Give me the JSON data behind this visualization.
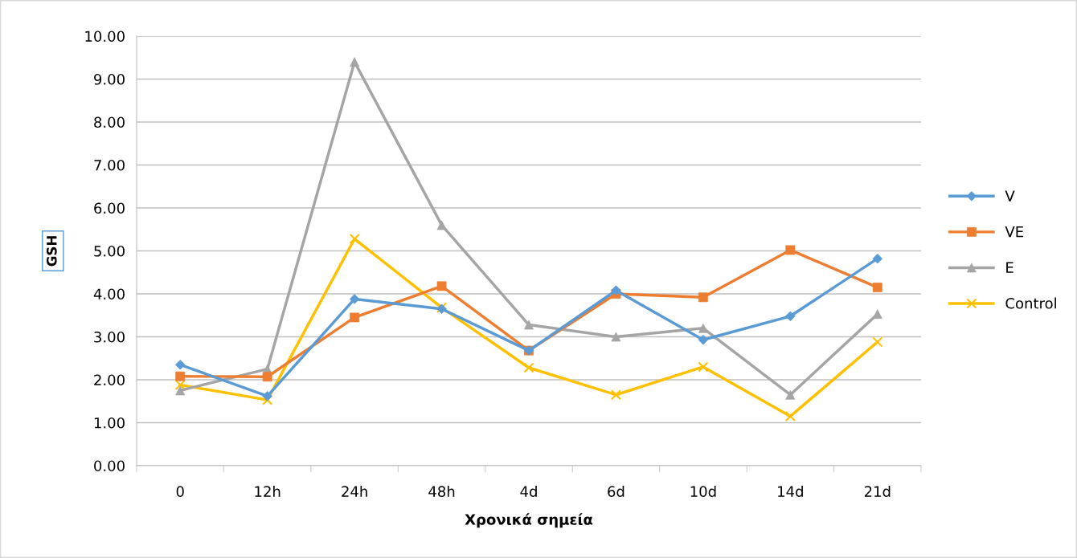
{
  "chart_data": {
    "type": "line",
    "xlabel": "Χρονικά σημεία",
    "ylabel": "GSH",
    "categories": [
      "0",
      "12h",
      "24h",
      "48h",
      "4d",
      "6d",
      "10d",
      "14d",
      "21d"
    ],
    "series": [
      {
        "name": "V",
        "color": "#5b9bd5",
        "marker": "diamond",
        "values": [
          2.35,
          1.62,
          3.88,
          3.65,
          2.68,
          4.08,
          2.93,
          3.48,
          4.82
        ]
      },
      {
        "name": "VE",
        "color": "#ed7d31",
        "marker": "square",
        "values": [
          2.08,
          2.07,
          3.45,
          4.18,
          2.68,
          4.0,
          3.92,
          5.02,
          4.15
        ]
      },
      {
        "name": "E",
        "color": "#a5a5a5",
        "marker": "triangle",
        "values": [
          1.75,
          2.25,
          9.4,
          5.6,
          3.28,
          3.0,
          3.2,
          1.65,
          3.53
        ]
      },
      {
        "name": "Control",
        "color": "#ffc000",
        "marker": "cross",
        "values": [
          1.88,
          1.53,
          5.28,
          3.68,
          2.28,
          1.65,
          2.3,
          1.15,
          2.88
        ]
      }
    ],
    "ylim": [
      0,
      10
    ],
    "yticks": [
      {
        "value": 0,
        "label": "0.00"
      },
      {
        "value": 1,
        "label": "1.00"
      },
      {
        "value": 2,
        "label": "2.00"
      },
      {
        "value": 3,
        "label": "3.00"
      },
      {
        "value": 4,
        "label": "4.00"
      },
      {
        "value": 5,
        "label": "5.00"
      },
      {
        "value": 6,
        "label": "6.00"
      },
      {
        "value": 7,
        "label": "7.00"
      },
      {
        "value": 8,
        "label": "8.00"
      },
      {
        "value": 9,
        "label": "9.00"
      },
      {
        "value": 10,
        "label": "10.00"
      }
    ],
    "grid": "y",
    "legend": "right",
    "line_style": "solid"
  }
}
